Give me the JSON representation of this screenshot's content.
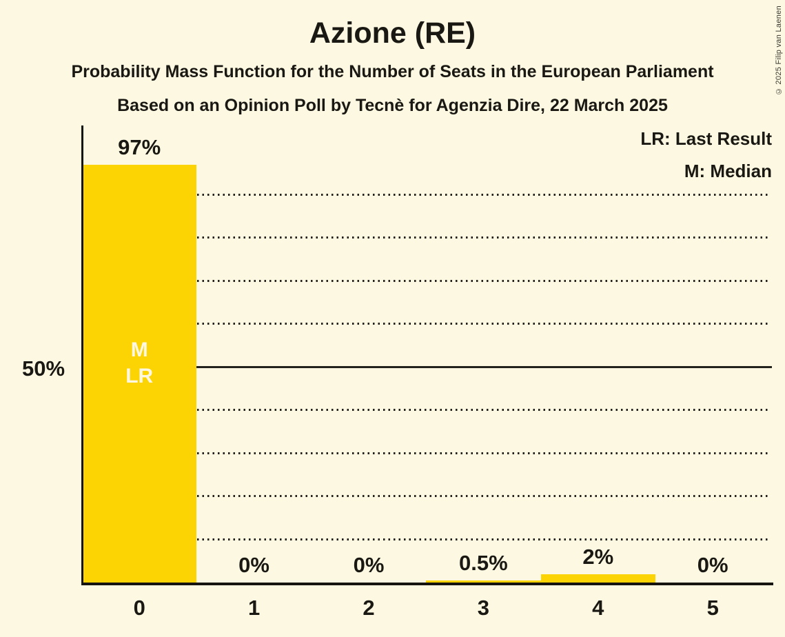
{
  "title": "Azione (RE)",
  "subtitle_line1": "Probability Mass Function for the Number of Seats in the European Parliament",
  "subtitle_line2": "Based on an Opinion Poll by Tecnè for Agenzia Dire, 22 March 2025",
  "copyright": "© 2025 Filip van Laenen",
  "legend": {
    "lr": "LR: Last Result",
    "m": "M: Median"
  },
  "y_axis": {
    "tick_label": "50%"
  },
  "chart_data": {
    "type": "bar",
    "title": "Azione (RE)",
    "subtitle": "Probability Mass Function for the Number of Seats in the European Parliament",
    "source_line": "Based on an Opinion Poll by Tecnè for Agenzia Dire, 22 March 2025",
    "categories": [
      "0",
      "1",
      "2",
      "3",
      "4",
      "5"
    ],
    "values": [
      97,
      0,
      0,
      0.5,
      2,
      0
    ],
    "value_labels": [
      "97%",
      "0%",
      "0%",
      "0.5%",
      "2%",
      "0%"
    ],
    "annotations": {
      "seat_index": 0,
      "lines": [
        "M",
        "LR"
      ]
    },
    "legend_entries": [
      "LR: Last Result",
      "M: Median"
    ],
    "ylim": [
      0,
      100
    ],
    "y_tick_percent": 50,
    "gridline_percents": [
      10,
      20,
      30,
      40,
      60,
      70,
      80,
      90
    ],
    "solid_line_percent": 50,
    "grid": true,
    "legend_position": "top-right",
    "colors": {
      "bar": "#FCD404",
      "background": "#FDF8E2",
      "text": "#1A1812",
      "annotation_text": "#FCF7E3",
      "gridline": "#22211C",
      "axis": "#15140F",
      "copyright_text": "#3A3930"
    }
  }
}
